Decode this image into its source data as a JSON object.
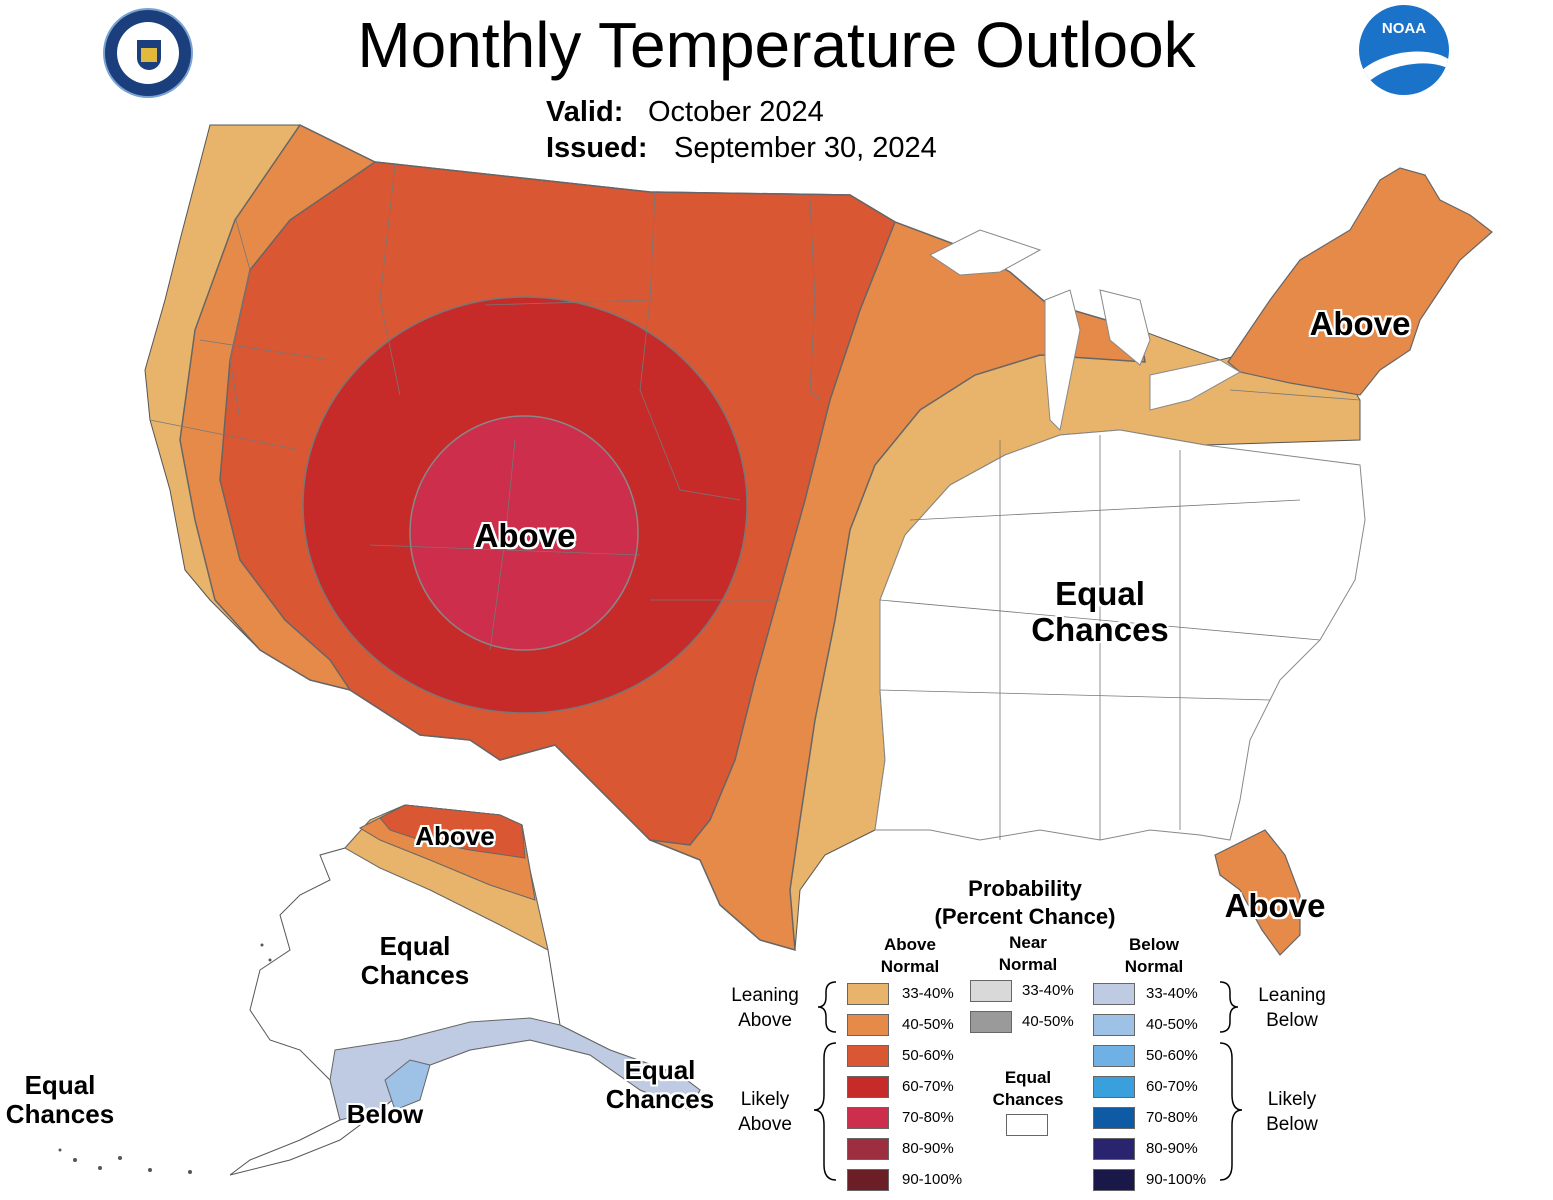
{
  "title": "Monthly Temperature Outlook",
  "valid_label": "Valid:",
  "valid_value": "October 2024",
  "issued_label": "Issued:",
  "issued_value": "September 30, 2024",
  "logos": {
    "left": "department-of-commerce-seal",
    "left_text": "DEPARTMENT OF COMMERCE · UNITED STATES OF AMERICA",
    "right": "noaa-logo",
    "right_text": "NOAA"
  },
  "region_labels": {
    "conus_west": "Above",
    "northeast": "Above",
    "southeast": "Equal Chances",
    "florida": "Above",
    "alaska_north": "Above",
    "alaska_interior": "Equal Chances",
    "alaska_south": "Below",
    "aleutians_east": "Equal Chances",
    "hawaii": "Equal Chances"
  },
  "legend": {
    "title_line1": "Probability",
    "title_line2": "(Percent Chance)",
    "above_head_1": "Above",
    "above_head_2": "Normal",
    "near_head_1": "Near",
    "near_head_2": "Normal",
    "below_head_1": "Below",
    "below_head_2": "Normal",
    "leaning_above_1": "Leaning",
    "leaning_above_2": "Above",
    "likely_above_1": "Likely",
    "likely_above_2": "Above",
    "leaning_below_1": "Leaning",
    "leaning_below_2": "Below",
    "likely_below_1": "Likely",
    "likely_below_2": "Below",
    "equal_1": "Equal",
    "equal_2": "Chances",
    "above": [
      {
        "range": "33-40%",
        "color": "#E8B36A"
      },
      {
        "range": "40-50%",
        "color": "#E68A4A"
      },
      {
        "range": "50-60%",
        "color": "#DA5733"
      },
      {
        "range": "60-70%",
        "color": "#C62B2A"
      },
      {
        "range": "70-80%",
        "color": "#CC2E4B"
      },
      {
        "range": "80-90%",
        "color": "#9C2E3F"
      },
      {
        "range": "90-100%",
        "color": "#6B1E25"
      }
    ],
    "near": [
      {
        "range": "33-40%",
        "color": "#D9D9D9"
      },
      {
        "range": "40-50%",
        "color": "#9A9A9A"
      }
    ],
    "below": [
      {
        "range": "33-40%",
        "color": "#BFCBE3"
      },
      {
        "range": "40-50%",
        "color": "#9EC1E6"
      },
      {
        "range": "50-60%",
        "color": "#6FB1E4"
      },
      {
        "range": "60-70%",
        "color": "#3A9FDD"
      },
      {
        "range": "70-80%",
        "color": "#0E5AA5"
      },
      {
        "range": "80-90%",
        "color": "#2A246E"
      },
      {
        "range": "90-100%",
        "color": "#1A1848"
      }
    ],
    "equal_color": "#FFFFFF"
  }
}
